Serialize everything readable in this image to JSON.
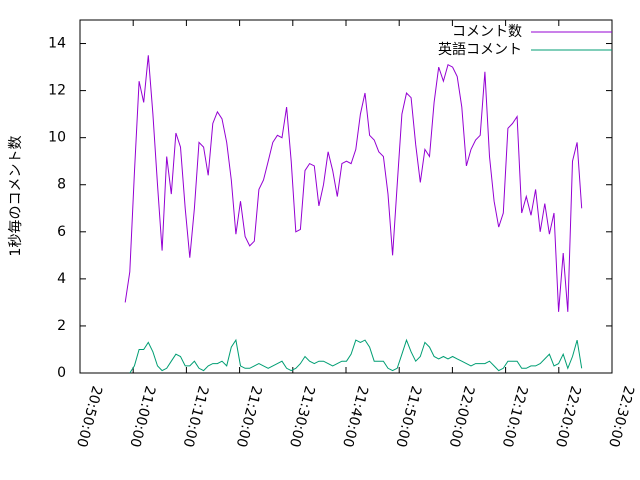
{
  "chart_data": {
    "type": "line",
    "ylabel": "1秒毎のコメント数",
    "x": [
      "20:58:30",
      "20:59:22",
      "21:00:14",
      "21:01:06",
      "21:01:58",
      "21:02:50",
      "21:03:42",
      "21:04:34",
      "21:05:26",
      "21:06:18",
      "21:07:10",
      "21:08:02",
      "21:08:54",
      "21:09:46",
      "21:10:38",
      "21:11:30",
      "21:12:22",
      "21:13:14",
      "21:14:06",
      "21:14:58",
      "21:15:50",
      "21:16:42",
      "21:17:34",
      "21:18:26",
      "21:19:18",
      "21:20:10",
      "21:21:02",
      "21:21:54",
      "21:22:46",
      "21:23:38",
      "21:24:30",
      "21:25:22",
      "21:26:14",
      "21:27:06",
      "21:27:58",
      "21:28:50",
      "21:29:42",
      "21:30:34",
      "21:31:26",
      "21:32:18",
      "21:33:10",
      "21:34:02",
      "21:34:54",
      "21:35:46",
      "21:36:38",
      "21:37:30",
      "21:38:22",
      "21:39:14",
      "21:40:06",
      "21:40:58",
      "21:41:50",
      "21:42:42",
      "21:43:34",
      "21:44:26",
      "21:45:18",
      "21:46:10",
      "21:47:02",
      "21:47:54",
      "21:48:46",
      "21:49:38",
      "21:50:30",
      "21:51:22",
      "21:52:14",
      "21:53:06",
      "21:53:58",
      "21:54:50",
      "21:55:42",
      "21:56:34",
      "21:57:26",
      "21:58:18",
      "21:59:10",
      "22:00:02",
      "22:00:54",
      "22:01:46",
      "22:02:38",
      "22:03:30",
      "22:04:22",
      "22:05:14",
      "22:06:06",
      "22:06:58",
      "22:07:50",
      "22:08:42",
      "22:09:34",
      "22:10:26",
      "22:11:18",
      "22:12:10",
      "22:13:02",
      "22:13:54",
      "22:14:46",
      "22:15:38",
      "22:16:30",
      "22:17:22",
      "22:18:14",
      "22:19:06",
      "22:19:58",
      "22:20:50",
      "22:21:42",
      "22:22:34",
      "22:23:26",
      "22:24:18"
    ],
    "series": [
      {
        "name": "コメント数",
        "color": "#9400d3",
        "values": [
          3.0,
          4.3,
          8.5,
          12.4,
          11.5,
          13.5,
          11,
          8,
          5.2,
          9.2,
          7.6,
          10.2,
          9.6,
          7,
          4.9,
          7,
          9.8,
          9.6,
          8.4,
          10.6,
          11.1,
          10.8,
          9.8,
          8.2,
          5.9,
          7.3,
          5.8,
          5.4,
          5.6,
          7.8,
          8.2,
          9.0,
          9.8,
          10.1,
          10.0,
          11.3,
          9.0,
          6.0,
          6.1,
          8.6,
          8.9,
          8.8,
          7.1,
          8.0,
          9.4,
          8.6,
          7.5,
          8.9,
          9.0,
          8.9,
          9.5,
          11.0,
          11.9,
          10.1,
          9.9,
          9.4,
          9.2,
          7.6,
          5.0,
          8.0,
          11.0,
          11.9,
          11.7,
          9.7,
          8.1,
          9.5,
          9.2,
          11.5,
          13.0,
          12.4,
          13.1,
          13.0,
          12.6,
          11.3,
          8.8,
          9.5,
          9.9,
          10.1,
          12.8,
          9.2,
          7.3,
          6.2,
          6.8,
          10.4,
          10.6,
          10.9,
          6.8,
          7.5,
          6.7,
          7.8,
          6.0,
          7.2,
          5.9,
          6.8,
          2.6,
          5.1,
          2.6,
          9.0,
          9.8,
          7.0
        ]
      },
      {
        "name": "英語コメント",
        "color": "#009e73",
        "values": [
          null,
          0,
          0.3,
          1.0,
          1.0,
          1.3,
          0.9,
          0.3,
          0.1,
          0.2,
          0.5,
          0.8,
          0.7,
          0.3,
          0.3,
          0.5,
          0.2,
          0.1,
          0.3,
          0.4,
          0.4,
          0.5,
          0.3,
          1.1,
          1.4,
          0.3,
          0.2,
          0.2,
          0.3,
          0.4,
          0.3,
          0.2,
          0.3,
          0.4,
          0.5,
          0.2,
          0.1,
          0.2,
          0.4,
          0.7,
          0.5,
          0.4,
          0.5,
          0.5,
          0.4,
          0.3,
          0.4,
          0.5,
          0.5,
          0.8,
          1.4,
          1.3,
          1.4,
          1.1,
          0.5,
          0.5,
          0.5,
          0.2,
          0.1,
          0.2,
          0.8,
          1.4,
          0.9,
          0.5,
          0.7,
          1.3,
          1.1,
          0.7,
          0.6,
          0.7,
          0.6,
          0.7,
          0.6,
          0.5,
          0.4,
          0.3,
          0.4,
          0.4,
          0.4,
          0.5,
          0.3,
          0.1,
          0.2,
          0.5,
          0.5,
          0.5,
          0.2,
          0.2,
          0.3,
          0.3,
          0.4,
          0.6,
          0.8,
          0.3,
          0.4,
          0.8,
          0.2,
          0.7,
          1.4,
          0.2
        ]
      }
    ],
    "xlim": [
      "20:50:00",
      "22:30:00"
    ],
    "xticks": [
      "20:50:00",
      "21:00:00",
      "21:10:00",
      "21:20:00",
      "21:30:00",
      "21:40:00",
      "21:50:00",
      "22:00:00",
      "22:10:00",
      "22:20:00",
      "22:30:00"
    ],
    "ylim": [
      0,
      15
    ],
    "yticks": [
      0,
      2,
      4,
      6,
      8,
      10,
      12,
      14
    ],
    "legend": "top-right"
  }
}
